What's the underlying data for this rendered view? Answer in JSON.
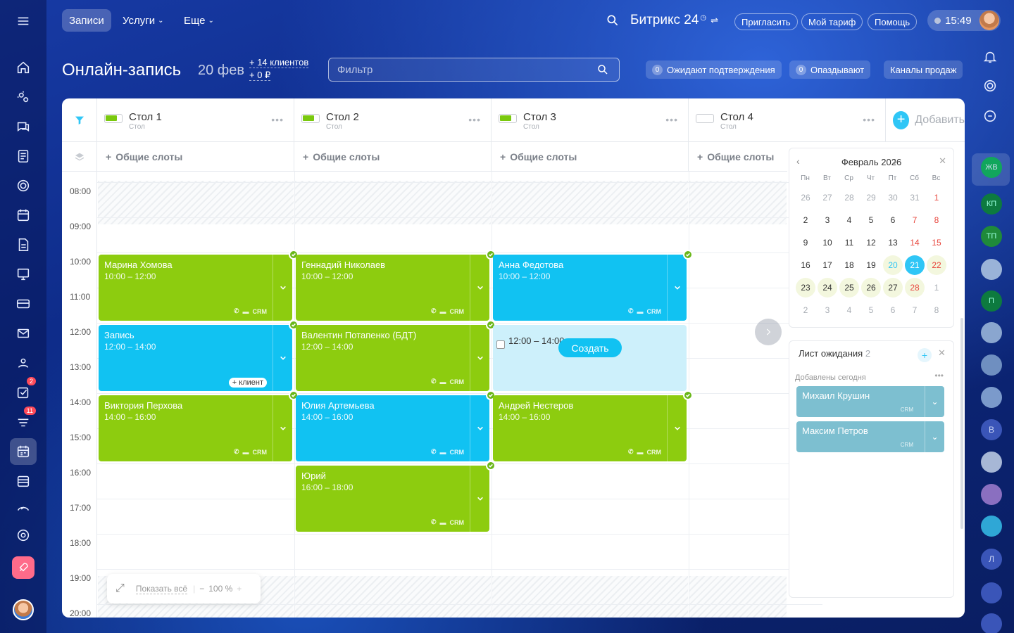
{
  "topbar": {
    "tabs": [
      "Записи",
      "Услуги",
      "Еще"
    ],
    "brand": "Битрикс 24",
    "invite": "Пригласить",
    "tariff": "Мой тариф",
    "help": "Помощь",
    "time": "15:49"
  },
  "page": {
    "title": "Онлайн-запись",
    "date": "20 фев",
    "clients": "+ 14 клиентов",
    "money": "+ 0 ₽",
    "filter_placeholder": "Фильтр",
    "pending_count": "0",
    "pending_label": "Ожидают подтверждения",
    "late_count": "0",
    "late_label": "Опаздывают",
    "channels": "Каналы продаж"
  },
  "columns": [
    {
      "title": "Стол 1",
      "subtitle": "Стол",
      "active": true
    },
    {
      "title": "Стол 2",
      "subtitle": "Стол",
      "active": true
    },
    {
      "title": "Стол 3",
      "subtitle": "Стол",
      "active": true
    },
    {
      "title": "Стол 4",
      "subtitle": "Стол",
      "active": false
    }
  ],
  "add_label": "Добавить",
  "common_slots": "Общие слоты",
  "times": [
    "08:00",
    "09:00",
    "10:00",
    "11:00",
    "12:00",
    "13:00",
    "14:00",
    "15:00",
    "16:00",
    "17:00",
    "18:00",
    "19:00",
    "20:00"
  ],
  "events": [
    {
      "col": 0,
      "name": "Марина Хомова",
      "time": "10:00 – 12:00",
      "color": "green"
    },
    {
      "col": 0,
      "name": "Запись",
      "time": "12:00 – 14:00",
      "color": "blue",
      "badge": "+ клиент"
    },
    {
      "col": 0,
      "name": "Виктория Перхова",
      "time": "14:00 – 16:00",
      "color": "green"
    },
    {
      "col": 1,
      "name": "Геннадий Николаев",
      "time": "10:00 – 12:00",
      "color": "green"
    },
    {
      "col": 1,
      "name": "Валентин Потапенко (БДТ)",
      "time": "12:00 – 14:00",
      "color": "green"
    },
    {
      "col": 1,
      "name": "Юлия Артемьева",
      "time": "14:00 – 16:00",
      "color": "blue"
    },
    {
      "col": 1,
      "name": "Юрий",
      "time": "16:00 – 18:00",
      "color": "green"
    },
    {
      "col": 2,
      "name": "Анна Федотова",
      "time": "10:00 – 12:00",
      "color": "blue"
    },
    {
      "col": 2,
      "name": "Андрей Нестеров",
      "time": "14:00 – 16:00",
      "color": "green"
    }
  ],
  "crm_label": "CRM",
  "new_slot": {
    "time": "12:00 – 14:00",
    "button": "Создать"
  },
  "calendar": {
    "month": "Февраль 2026",
    "weekdays": [
      "Пн",
      "Вт",
      "Ср",
      "Чт",
      "Пт",
      "Сб",
      "Вс"
    ],
    "weeks": [
      [
        "26",
        "27",
        "28",
        "29",
        "30",
        "31",
        "1"
      ],
      [
        "2",
        "3",
        "4",
        "5",
        "6",
        "7",
        "8"
      ],
      [
        "9",
        "10",
        "11",
        "12",
        "13",
        "14",
        "15"
      ],
      [
        "16",
        "17",
        "18",
        "19",
        "20",
        "21",
        "22"
      ],
      [
        "23",
        "24",
        "25",
        "26",
        "27",
        "28",
        "1"
      ],
      [
        "2",
        "3",
        "4",
        "5",
        "6",
        "7",
        "8"
      ]
    ]
  },
  "waitlist": {
    "title": "Лист ожидания",
    "count": "2",
    "section": "Добавлены сегодня",
    "items": [
      "Михаил Крушин",
      "Максим Петров"
    ]
  },
  "zoom": {
    "show_all": "Показать всё",
    "level": "100 %"
  },
  "right_avatars": [
    "ЖВ",
    "КП",
    "ТП",
    "П",
    "В",
    "Л"
  ],
  "left_badges": {
    "tasks": "2",
    "feed": "11"
  }
}
